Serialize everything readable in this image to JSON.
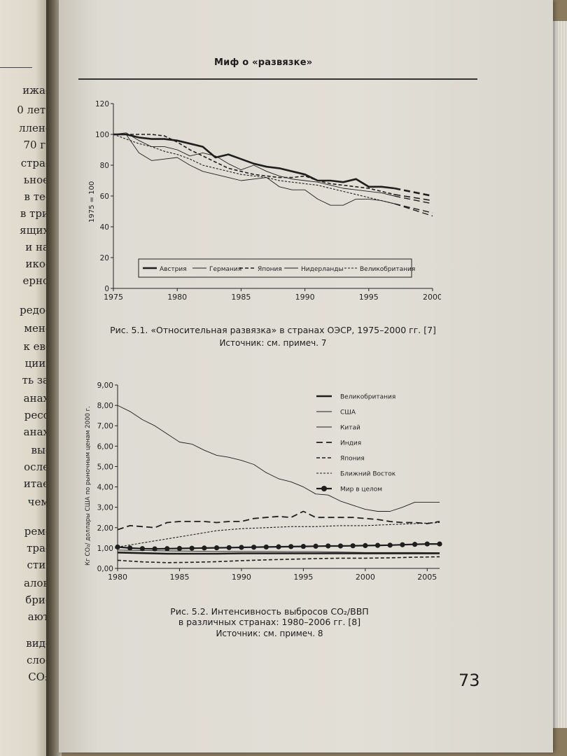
{
  "left_page": {
    "lines": [
      "ижа-",
      "0 лет.",
      "ллен-",
      "70 г.",
      "стра-",
      "ьное",
      "в те-",
      "в три",
      "ящих",
      "и на",
      "ико-",
      "ерно",
      "редо-",
      "мен-",
      "к ев-",
      "ции,",
      "ть за",
      "анах",
      "ресс",
      "анах",
      "вы-",
      "осле",
      "итае",
      "чем",
      "рем-",
      "тра-",
      "сти.",
      "алов",
      "бри-",
      "ают",
      "вид-",
      "сло-",
      "CO₂"
    ]
  },
  "header": {
    "running_title": "Миф о «развязке»"
  },
  "page_number": "73",
  "figure1": {
    "caption": "Рис. 5.1. «Относительная развязка» в странах ОЭСР, 1975–2000 гг. [7]",
    "source": "Источник: см. примеч. 7",
    "y_axis_label": "1975 = 100"
  },
  "figure2": {
    "caption_line1": "Рис. 5.2. Интенсивность выбросов CO₂/ВВП",
    "caption_line2": "в различных странах: 1980–2006 гг. [8]",
    "source": "Источник: см. примеч. 8",
    "y_axis_label": "Кг CO₂/ доллары США по рыночным ценам 2000 г."
  },
  "chart_data": [
    {
      "type": "line",
      "title": "",
      "xlabel": "",
      "ylabel": "1975 = 100",
      "xlim": [
        1975,
        2000
      ],
      "ylim": [
        0,
        120
      ],
      "x_ticks": [
        "1975",
        "1980",
        "1985",
        "1990",
        "1995",
        "2000"
      ],
      "y_ticks": [
        "0",
        "20",
        "40",
        "60",
        "80",
        "100",
        "120"
      ],
      "grid": false,
      "legend": "bottom-inside",
      "series": [
        {
          "name": "Австрия",
          "style": "thick-solid",
          "x": [
            1975,
            1976,
            1977,
            1978,
            1979,
            1980,
            1981,
            1982,
            1983,
            1984,
            1985,
            1986,
            1987,
            1988,
            1989,
            1990,
            1991,
            1992,
            1993,
            1994,
            1995,
            1996,
            1997
          ],
          "y": [
            100,
            100,
            98,
            97,
            97,
            96,
            94,
            92,
            85,
            87,
            84,
            81,
            79,
            78,
            76,
            74,
            70,
            70,
            69,
            71,
            66,
            66,
            65
          ],
          "projection": {
            "x": [
              1997,
              2000
            ],
            "y": [
              65,
              60
            ]
          }
        },
        {
          "name": "Германия",
          "style": "thin-solid",
          "x": [
            1975,
            1976,
            1977,
            1978,
            1979,
            1980,
            1981,
            1982,
            1983,
            1984,
            1985,
            1986,
            1987,
            1988,
            1989,
            1990,
            1991,
            1992,
            1993,
            1994,
            1995,
            1996,
            1997
          ],
          "y": [
            100,
            101,
            96,
            92,
            92,
            90,
            86,
            88,
            86,
            81,
            77,
            80,
            76,
            73,
            71,
            70,
            69,
            67,
            65,
            64,
            63,
            62,
            60
          ],
          "projection": {
            "x": [
              1997,
              2000
            ],
            "y": [
              60,
              55
            ]
          }
        },
        {
          "name": "Япония",
          "style": "dashed",
          "x": [
            1975,
            1976,
            1977,
            1978,
            1979,
            1980,
            1981,
            1982,
            1983,
            1984,
            1985,
            1986,
            1987,
            1988,
            1989,
            1990,
            1991,
            1992,
            1993,
            1994,
            1995,
            1996,
            1997
          ],
          "y": [
            100,
            100,
            100,
            100,
            99,
            95,
            90,
            86,
            82,
            78,
            76,
            74,
            73,
            72,
            72,
            73,
            70,
            68,
            67,
            66,
            65,
            63,
            61
          ],
          "projection": {
            "x": [
              1997,
              2000
            ],
            "y": [
              61,
              57
            ]
          }
        },
        {
          "name": "Нидерланды",
          "style": "thin-solid",
          "x": [
            1975,
            1976,
            1977,
            1978,
            1979,
            1980,
            1981,
            1982,
            1983,
            1984,
            1985,
            1986,
            1987,
            1988,
            1989,
            1990,
            1991,
            1992,
            1993,
            1994,
            1995,
            1996,
            1997
          ],
          "y": [
            100,
            100,
            88,
            83,
            84,
            85,
            80,
            76,
            74,
            72,
            70,
            71,
            72,
            66,
            64,
            64,
            58,
            54,
            54,
            58,
            58,
            57,
            55
          ],
          "projection": {
            "x": [
              1997,
              2000
            ],
            "y": [
              55,
              49
            ]
          }
        },
        {
          "name": "Великобритания",
          "style": "fine-dashed",
          "x": [
            1975,
            1976,
            1977,
            1978,
            1979,
            1980,
            1981,
            1982,
            1983,
            1984,
            1985,
            1986,
            1987,
            1988,
            1989,
            1990,
            1991,
            1992,
            1993,
            1994,
            1995,
            1996,
            1997
          ],
          "y": [
            100,
            97,
            94,
            92,
            89,
            87,
            84,
            80,
            78,
            76,
            74,
            73,
            72,
            70,
            69,
            68,
            67,
            65,
            63,
            61,
            59,
            57,
            55
          ],
          "projection": {
            "x": [
              1997,
              2000
            ],
            "y": [
              55,
              47
            ]
          }
        }
      ]
    },
    {
      "type": "line",
      "title": "",
      "xlabel": "",
      "ylabel": "Кг CO₂/ доллары США по рыночным ценам 2000 г.",
      "xlim": [
        1980,
        2006
      ],
      "ylim": [
        0,
        9
      ],
      "x_ticks": [
        "1980",
        "1985",
        "1990",
        "1995",
        "2000",
        "2005"
      ],
      "y_ticks": [
        "0,00",
        "1,00",
        "2,00",
        "3,00",
        "4,00",
        "5,00",
        "6,00",
        "7,00",
        "8,00",
        "9,00"
      ],
      "grid": false,
      "legend": "top-right",
      "series": [
        {
          "name": "Великобритания",
          "style": "thick-solid",
          "x": [
            1980,
            1982,
            1984,
            1986,
            1988,
            1990,
            1992,
            1994,
            1996,
            1998,
            2000,
            2002,
            2004,
            2006
          ],
          "y": [
            0.78,
            0.75,
            0.72,
            0.72,
            0.72,
            0.74,
            0.74,
            0.74,
            0.74,
            0.74,
            0.74,
            0.74,
            0.74,
            0.74
          ]
        },
        {
          "name": "США",
          "style": "thin-solid",
          "x": [
            1980,
            1982,
            1984,
            1986,
            1988,
            1990,
            1992,
            1994,
            1996,
            1998,
            2000,
            2002,
            2004,
            2006
          ],
          "y": [
            0.9,
            0.88,
            0.86,
            0.85,
            0.83,
            0.83,
            0.83,
            0.82,
            0.82,
            0.8,
            0.78,
            0.78,
            0.78,
            0.77
          ]
        },
        {
          "name": "Китай",
          "style": "thin-solid",
          "x": [
            1980,
            1981,
            1982,
            1983,
            1984,
            1985,
            1986,
            1987,
            1988,
            1989,
            1990,
            1991,
            1992,
            1993,
            1994,
            1995,
            1996,
            1997,
            1998,
            1999,
            2000,
            2001,
            2002,
            2003,
            2004,
            2005,
            2006
          ],
          "y": [
            8.0,
            7.7,
            7.3,
            7.0,
            6.6,
            6.2,
            6.1,
            5.8,
            5.55,
            5.45,
            5.3,
            5.1,
            4.7,
            4.4,
            4.25,
            4.0,
            3.65,
            3.6,
            3.3,
            3.1,
            2.9,
            2.8,
            2.8,
            3.0,
            3.25,
            3.25,
            3.25
          ]
        },
        {
          "name": "Индия",
          "style": "long-dashed",
          "x": [
            1980,
            1981,
            1982,
            1983,
            1984,
            1985,
            1986,
            1987,
            1988,
            1989,
            1990,
            1991,
            1992,
            1993,
            1994,
            1995,
            1996,
            1997,
            1998,
            1999,
            2000,
            2001,
            2002,
            2003,
            2004,
            2005,
            2006
          ],
          "y": [
            1.9,
            2.1,
            2.05,
            2.0,
            2.25,
            2.3,
            2.3,
            2.3,
            2.25,
            2.3,
            2.3,
            2.45,
            2.5,
            2.55,
            2.5,
            2.8,
            2.5,
            2.5,
            2.5,
            2.5,
            2.45,
            2.4,
            2.3,
            2.25,
            2.25,
            2.2,
            2.3
          ]
        },
        {
          "name": "Япония",
          "style": "dashed",
          "x": [
            1980,
            1982,
            1984,
            1986,
            1988,
            1990,
            1992,
            1994,
            1996,
            1998,
            2000,
            2002,
            2004,
            2006
          ],
          "y": [
            0.4,
            0.32,
            0.28,
            0.3,
            0.33,
            0.38,
            0.42,
            0.45,
            0.48,
            0.5,
            0.5,
            0.52,
            0.55,
            0.57
          ]
        },
        {
          "name": "Ближний Восток",
          "style": "fine-dashed",
          "x": [
            1980,
            1982,
            1984,
            1986,
            1988,
            1990,
            1992,
            1994,
            1996,
            1998,
            2000,
            2002,
            2004,
            2006
          ],
          "y": [
            1.05,
            1.25,
            1.45,
            1.65,
            1.85,
            1.95,
            2.0,
            2.05,
            2.05,
            2.1,
            2.1,
            2.15,
            2.2,
            2.25
          ]
        },
        {
          "name": "Мир в целом",
          "style": "thick-with-dots",
          "x": [
            1980,
            1981,
            1982,
            1983,
            1984,
            1985,
            1986,
            1987,
            1988,
            1989,
            1990,
            1991,
            1992,
            1993,
            1994,
            1995,
            1996,
            1997,
            1998,
            1999,
            2000,
            2001,
            2002,
            2003,
            2004,
            2005,
            2006
          ],
          "y": [
            1.05,
            1.0,
            0.97,
            0.96,
            0.97,
            0.98,
            0.99,
            1.0,
            1.01,
            1.02,
            1.03,
            1.04,
            1.05,
            1.06,
            1.07,
            1.08,
            1.09,
            1.1,
            1.1,
            1.11,
            1.12,
            1.13,
            1.14,
            1.16,
            1.18,
            1.2,
            1.2
          ]
        }
      ]
    }
  ]
}
